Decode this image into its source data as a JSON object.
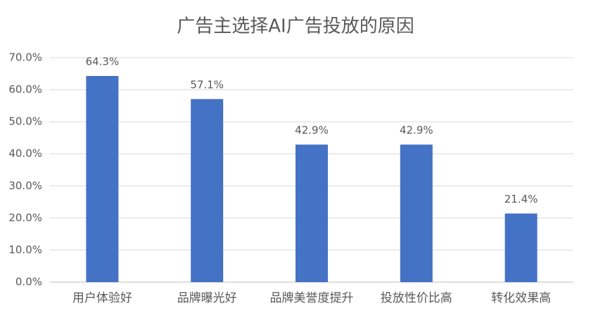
{
  "chart_data": {
    "type": "bar",
    "title": "广告主选择AI广告投放的原因",
    "categories": [
      "用户体验好",
      "品牌曝光好",
      "品牌美誉度提升",
      "投放性价比高",
      "转化效果高"
    ],
    "values": [
      64.3,
      57.1,
      42.9,
      42.9,
      21.4
    ],
    "value_labels": [
      "64.3%",
      "57.1%",
      "42.9%",
      "42.9%",
      "21.4%"
    ],
    "color": "#4472c4",
    "ylim": [
      0,
      70
    ],
    "yticks": [
      {
        "value": 0,
        "label": "0.0%"
      },
      {
        "value": 10,
        "label": "10.0%"
      },
      {
        "value": 20,
        "label": "20.0%"
      },
      {
        "value": 30,
        "label": "30.0%"
      },
      {
        "value": 40,
        "label": "40.0%"
      },
      {
        "value": 50,
        "label": "50.0%"
      },
      {
        "value": 60,
        "label": "60.0%"
      },
      {
        "value": 70,
        "label": "70.0%"
      }
    ],
    "grid": true
  }
}
